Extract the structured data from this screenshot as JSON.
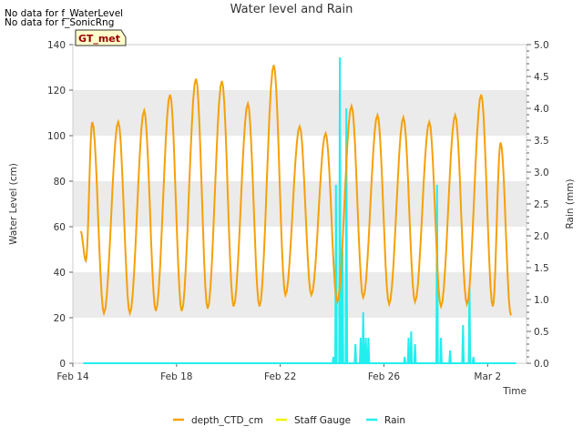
{
  "notes": [
    "No data for f_WaterLevel",
    "No data for f_SonicRng"
  ],
  "chart_data": {
    "type": "line",
    "title": "Water level and Rain",
    "xlabel": "Time",
    "ylabel": "Water Level (cm)",
    "y2label": "Rain (mm)",
    "badge": "GT_met",
    "x_tick_labels": [
      "Feb 14",
      "Feb 18",
      "Feb 22",
      "Feb 26",
      "Mar 2"
    ],
    "x_ticks": [
      0,
      4,
      8,
      12,
      16
    ],
    "xlim": [
      0,
      17.5
    ],
    "ylim": [
      0,
      140
    ],
    "y_ticks": [
      0,
      20,
      40,
      60,
      80,
      100,
      120,
      140
    ],
    "y2lim": [
      0,
      5.0
    ],
    "y2_ticks": [
      0.0,
      0.5,
      1.0,
      1.5,
      2.0,
      2.5,
      3.0,
      3.5,
      4.0,
      4.5,
      5.0
    ],
    "grid": "horizontal bands",
    "legend_position": "bottom",
    "colors": {
      "depth_CTD_cm": "#f5a00a",
      "Staff Gauge": "#f0f000",
      "Rain": "#22eeee",
      "band": "#ebebeb"
    },
    "series": [
      {
        "name": "depth_CTD_cm",
        "axis": "left",
        "peaks": [
          [
            0.3,
            58
          ],
          [
            0.75,
            106
          ],
          [
            1.75,
            106
          ],
          [
            2.75,
            111
          ],
          [
            3.75,
            118
          ],
          [
            4.75,
            125
          ],
          [
            5.75,
            124
          ],
          [
            6.75,
            114
          ],
          [
            7.75,
            131
          ],
          [
            8.75,
            104
          ],
          [
            9.75,
            101
          ],
          [
            10.75,
            113
          ],
          [
            11.75,
            109
          ],
          [
            12.75,
            108
          ],
          [
            13.75,
            106
          ],
          [
            14.75,
            109
          ],
          [
            15.75,
            118
          ],
          [
            16.5,
            97
          ]
        ],
        "troughs": [
          [
            0.5,
            45
          ],
          [
            1.2,
            22
          ],
          [
            2.2,
            22
          ],
          [
            3.2,
            23
          ],
          [
            4.2,
            23
          ],
          [
            5.2,
            24
          ],
          [
            6.2,
            25
          ],
          [
            7.2,
            25
          ],
          [
            8.2,
            30
          ],
          [
            9.2,
            30
          ],
          [
            10.2,
            27
          ],
          [
            11.2,
            29
          ],
          [
            12.2,
            26
          ],
          [
            13.2,
            27
          ],
          [
            14.2,
            25
          ],
          [
            15.2,
            26
          ],
          [
            16.2,
            25
          ],
          [
            16.9,
            21
          ]
        ]
      },
      {
        "name": "Staff Gauge",
        "axis": "left",
        "values": []
      },
      {
        "name": "Rain",
        "axis": "right",
        "events": [
          [
            10.05,
            0.1
          ],
          [
            10.15,
            2.8
          ],
          [
            10.3,
            4.8
          ],
          [
            10.4,
            1.8
          ],
          [
            10.55,
            4.0
          ],
          [
            10.9,
            0.3
          ],
          [
            11.1,
            0.4
          ],
          [
            11.2,
            0.8
          ],
          [
            11.3,
            0.4
          ],
          [
            11.4,
            0.4
          ],
          [
            12.8,
            0.1
          ],
          [
            12.95,
            0.4
          ],
          [
            13.05,
            0.5
          ],
          [
            13.2,
            0.3
          ],
          [
            14.05,
            2.8
          ],
          [
            14.2,
            0.4
          ],
          [
            14.55,
            0.2
          ],
          [
            15.05,
            0.6
          ],
          [
            15.3,
            1.2
          ],
          [
            15.45,
            0.1
          ]
        ]
      }
    ]
  }
}
